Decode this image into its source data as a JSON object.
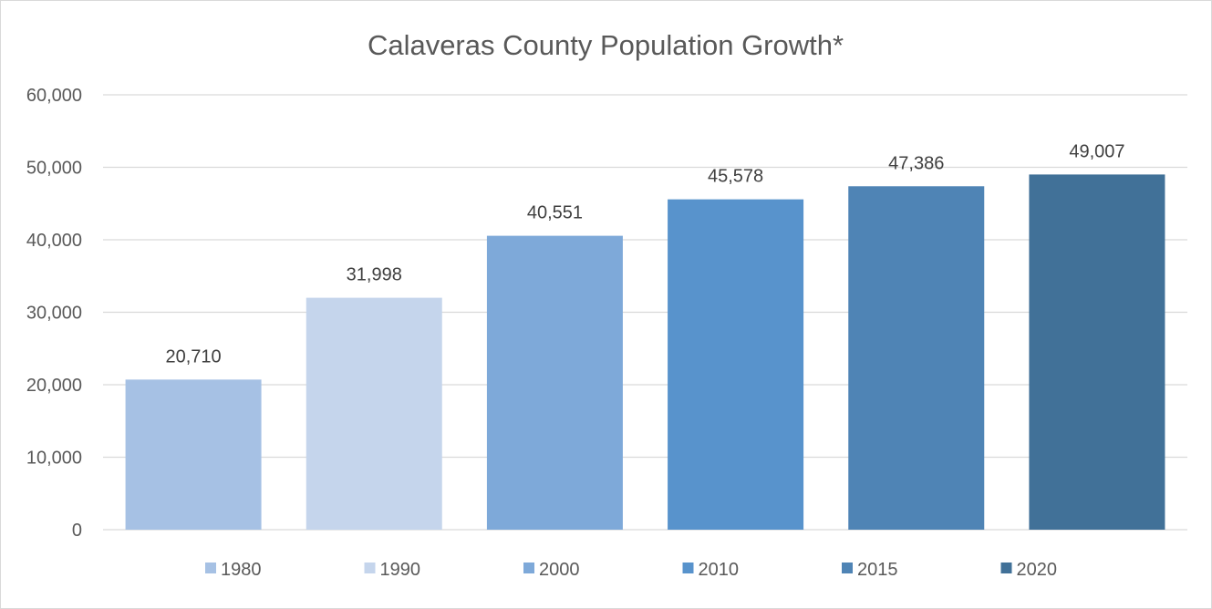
{
  "chart_data": {
    "type": "bar",
    "title": "Calaveras County Population Growth*",
    "xlabel": "",
    "ylabel": "",
    "categories": [
      "1980",
      "1990",
      "2000",
      "2010",
      "2015",
      "2020"
    ],
    "values": [
      20710,
      31998,
      40551,
      45578,
      47386,
      49007
    ],
    "data_labels": [
      "20,710",
      "31,998",
      "40,551",
      "45,578",
      "47,386",
      "49,007"
    ],
    "colors": [
      "#a6c1e4",
      "#c5d5ec",
      "#7ea9d9",
      "#5893cc",
      "#4f84b5",
      "#417198"
    ],
    "ylim": [
      0,
      60000
    ],
    "yticks": [
      0,
      10000,
      20000,
      30000,
      40000,
      50000,
      60000
    ],
    "ytick_labels": [
      "0",
      "10,000",
      "20,000",
      "30,000",
      "40,000",
      "50,000",
      "60,000"
    ],
    "grid": true,
    "gridline_color": "#d9d9d9",
    "legend": {
      "position": "bottom",
      "entries": [
        "1980",
        "1990",
        "2000",
        "2010",
        "2015",
        "2020"
      ]
    }
  }
}
